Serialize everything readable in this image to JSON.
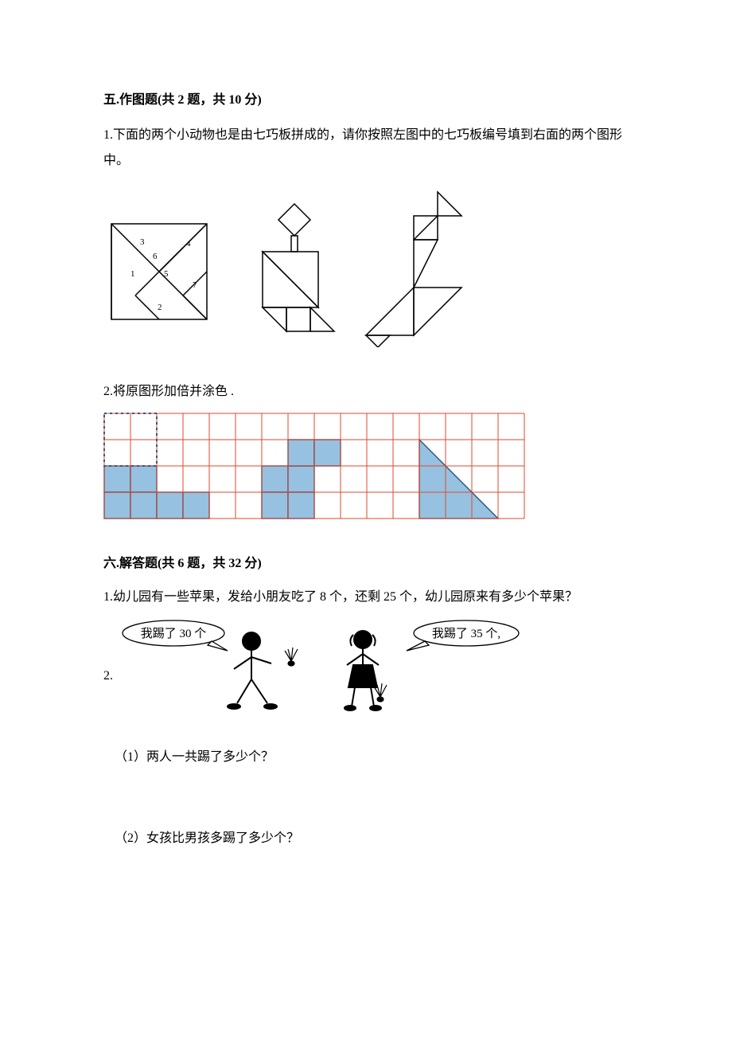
{
  "section5": {
    "title": "五.作图题(共 2 题，共 10 分)",
    "q1": "1.下面的两个小动物也是由七巧板拼成的，请你按照左图中的七巧板编号填到右面的两个图形中。",
    "q2": "2.将原图形加倍并涂色  ."
  },
  "tangram": {
    "square_size": 120,
    "labels": [
      "1",
      "2",
      "3",
      "4",
      "5",
      "6",
      "7"
    ],
    "stroke": "#000000",
    "fill": "#ffffff",
    "label_fontsize": 11
  },
  "grid": {
    "cols": 16,
    "rows": 4,
    "cell": 33,
    "line_color": "#e24a2e",
    "fill_color": "#96c1e0",
    "fill_stroke": "#2e5c8a",
    "dotted_color": "#2e5c8a",
    "filled_cells": [
      [
        2,
        0
      ],
      [
        2,
        1
      ],
      [
        3,
        0
      ],
      [
        3,
        1
      ],
      [
        3,
        2
      ],
      [
        3,
        3
      ],
      [
        2,
        6
      ],
      [
        2,
        7
      ],
      [
        3,
        6
      ],
      [
        3,
        7
      ],
      [
        1,
        7
      ],
      [
        1,
        8
      ]
    ],
    "triangle": {
      "col": 12,
      "row_top": 1,
      "row_bot": 3
    },
    "dotted_square": {
      "col": 0,
      "row": 0,
      "w": 2,
      "h": 2
    }
  },
  "section6": {
    "title": "六.解答题(共 6 题，共 32 分)",
    "q1": "1.幼儿园有一些苹果，发给小朋友吃了 8 个，还剩 25 个，幼儿园原来有多少个苹果？",
    "q2_prefix": "2.",
    "bubble_left": "我踢了 30 个",
    "bubble_right": "我踢了 35 个,",
    "sub1": "（1）两人一共踢了多少个？",
    "sub2": "（2）女孩比男孩多踢了多少个？"
  },
  "colors": {
    "text": "#000000",
    "bg": "#ffffff"
  }
}
